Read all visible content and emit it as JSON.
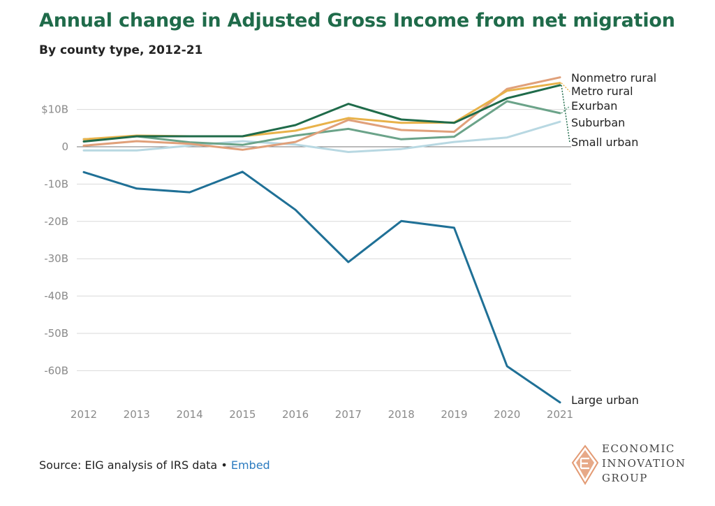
{
  "chart_data": {
    "type": "line",
    "title": "Annual change in Adjusted Gross Income from net migration",
    "subtitle": "By county type, 2012-21",
    "xlabel": "",
    "ylabel": "",
    "x": [
      2012,
      2013,
      2014,
      2015,
      2016,
      2017,
      2018,
      2019,
      2020,
      2021
    ],
    "x_tick_labels": [
      "2012",
      "2013",
      "2014",
      "2015",
      "2016",
      "2017",
      "2018",
      "2019",
      "2020",
      "2021"
    ],
    "y_ticks": [
      10,
      0,
      -10,
      -20,
      -30,
      -40,
      -50,
      -60
    ],
    "y_tick_labels": [
      "$10B",
      "0",
      "-10B",
      "-20B",
      "-30B",
      "-40B",
      "-50B",
      "-60B"
    ],
    "ylim": [
      -69,
      19
    ],
    "grid": "horizontal",
    "legend": "direct labels at right end of lines",
    "series": [
      {
        "name": "Nonmetro rural",
        "color": "#e0a07a",
        "values": [
          0.3,
          1.5,
          0.8,
          -0.8,
          1.3,
          7.2,
          4.5,
          4.0,
          15.5,
          18.6
        ]
      },
      {
        "name": "Metro rural",
        "color": "#e8b24a",
        "values": [
          2.0,
          3.0,
          2.8,
          2.8,
          4.3,
          7.7,
          6.4,
          6.5,
          15.0,
          17.1
        ]
      },
      {
        "name": "Exurban",
        "color": "#6ba389",
        "values": [
          2.0,
          2.8,
          1.2,
          0.5,
          3.0,
          4.8,
          2.0,
          2.7,
          12.2,
          9.0
        ]
      },
      {
        "name": "Suburban",
        "color": "#b8d8e2",
        "values": [
          -1.0,
          -1.0,
          0.3,
          1.5,
          0.6,
          -1.4,
          -0.6,
          1.3,
          2.5,
          6.7
        ]
      },
      {
        "name": "Small urban",
        "color": "#1f6b4a",
        "values": [
          1.4,
          2.8,
          2.8,
          2.8,
          5.8,
          11.5,
          7.3,
          6.4,
          13.0,
          16.5
        ]
      },
      {
        "name": "Large urban",
        "color": "#1f7096",
        "values": [
          -6.8,
          -11.2,
          -12.2,
          -6.7,
          -16.9,
          -30.9,
          -19.9,
          -21.7,
          -58.8,
          -68.5
        ]
      }
    ]
  },
  "footer": {
    "source_text": "Source: EIG analysis of IRS data • ",
    "embed_link": "Embed"
  },
  "logo": {
    "line1": "ECONOMIC",
    "line2": "INNOVATION",
    "line3": "GROUP",
    "icon": "eig-diamond-logo-icon",
    "color": "#e39a73"
  }
}
